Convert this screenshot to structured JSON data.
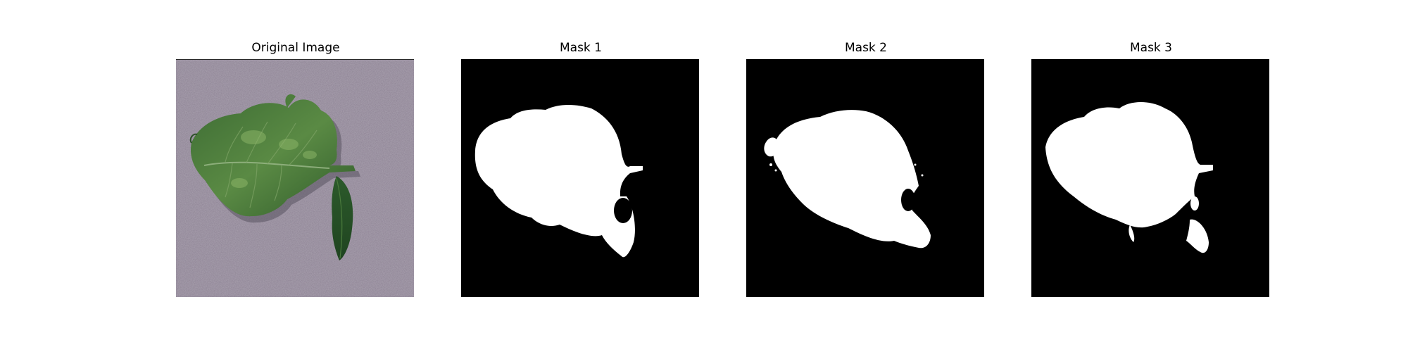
{
  "figure": {
    "panels": [
      {
        "title": "Original Image",
        "kind": "photo",
        "subject": "leaf-photo"
      },
      {
        "title": "Mask 1",
        "kind": "mask",
        "mask_color": "#ffffff",
        "background_color": "#000000"
      },
      {
        "title": "Mask 2",
        "kind": "mask",
        "mask_color": "#ffffff",
        "background_color": "#000000"
      },
      {
        "title": "Mask 3",
        "kind": "mask",
        "mask_color": "#ffffff",
        "background_color": "#000000"
      }
    ]
  },
  "colors": {
    "photo_background": "#8d8294",
    "leaf_dark": "#2f5a2a",
    "leaf_light": "#5f8f47",
    "mask_fg": "#ffffff",
    "mask_bg": "#000000"
  }
}
